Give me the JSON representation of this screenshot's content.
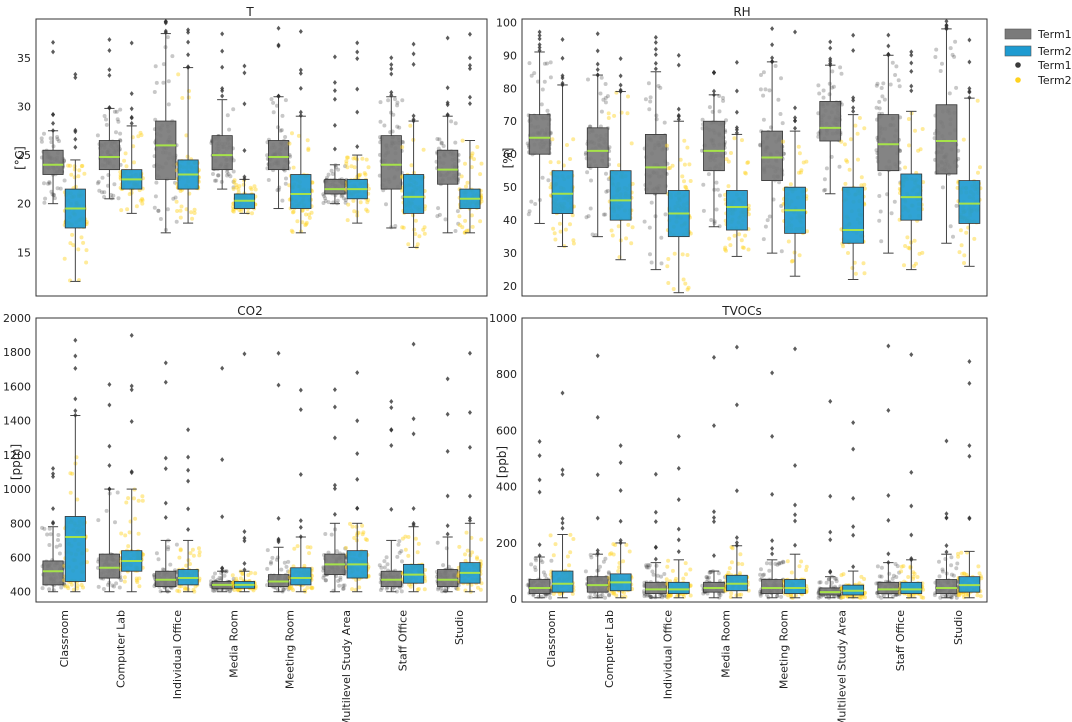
{
  "categories": [
    "Classroom",
    "Computer Lab",
    "Individual Office",
    "Media Room",
    "Meeting Room",
    "Multilevel Study Area",
    "Staff Office",
    "Studio"
  ],
  "legend": {
    "box_term1": "Term1",
    "box_term2": "Term2",
    "dot_term1": "Term1",
    "dot_term2": "Term2"
  },
  "colors": {
    "term1_box": "#7a7a7a",
    "term2_box": "#1e9bd1",
    "term1_dot": "#3a3a3a",
    "term2_dot": "#ffd21f",
    "median": "#a6e34a"
  },
  "chart_data": [
    {
      "type": "box",
      "title": "T",
      "ylabel": "[°C]",
      "ylim": [
        10.5,
        39
      ],
      "yticks": [
        15,
        20,
        25,
        30,
        35
      ],
      "series": [
        {
          "name": "Term1",
          "stats": [
            [
              20,
              23,
              24,
              25.5,
              27.5
            ],
            [
              20.5,
              23.5,
              24.8,
              26.5,
              29.8
            ],
            [
              17,
              22.5,
              26,
              28.5,
              37.5
            ],
            [
              21.5,
              23.5,
              25,
              27,
              30.7
            ],
            [
              19.5,
              23.5,
              24.8,
              26.5,
              31
            ],
            [
              20,
              21,
              21.5,
              22.5,
              24
            ],
            [
              17.5,
              21.5,
              24,
              27,
              31
            ],
            [
              17,
              22,
              23.5,
              25.5,
              29
            ]
          ]
        },
        {
          "name": "Term2",
          "stats": [
            [
              12,
              17.5,
              19.5,
              21.5,
              24.5
            ],
            [
              19,
              21.5,
              22.5,
              23.5,
              28
            ],
            [
              18,
              21.5,
              23,
              24.5,
              34
            ],
            [
              19,
              19.5,
              20.3,
              21,
              22.5
            ],
            [
              17,
              19.5,
              21,
              23,
              29
            ],
            [
              18,
              20.5,
              21.5,
              22.5,
              25
            ],
            [
              15.5,
              19,
              20.7,
              23,
              28.5
            ],
            [
              17,
              19.5,
              20.5,
              21.5,
              26.5
            ]
          ]
        }
      ]
    },
    {
      "type": "box",
      "title": "RH",
      "ylabel": "[%]",
      "ylim": [
        17,
        101
      ],
      "yticks": [
        20,
        30,
        40,
        50,
        60,
        70,
        80,
        90,
        100
      ],
      "series": [
        {
          "name": "Term1",
          "stats": [
            [
              39,
              60,
              65,
              72,
              91
            ],
            [
              35,
              56,
              61,
              68,
              84
            ],
            [
              25,
              48,
              56,
              66,
              85
            ],
            [
              38,
              55,
              61,
              70,
              78
            ],
            [
              30,
              52,
              59,
              67,
              88
            ],
            [
              48,
              64,
              68,
              76,
              87
            ],
            [
              30,
              55,
              63,
              72,
              90
            ],
            [
              33,
              54,
              64,
              75,
              98
            ]
          ]
        },
        {
          "name": "Term2",
          "stats": [
            [
              32,
              42,
              48,
              55,
              81
            ],
            [
              28,
              40,
              46,
              55,
              79
            ],
            [
              18,
              35,
              42,
              49,
              70
            ],
            [
              29,
              37,
              44,
              49,
              66
            ],
            [
              23,
              36,
              43,
              50,
              67
            ],
            [
              22,
              33,
              37,
              50,
              72
            ],
            [
              25,
              40,
              47,
              54,
              73
            ],
            [
              26,
              39,
              45,
              52,
              77
            ]
          ]
        }
      ]
    },
    {
      "type": "box",
      "title": "CO2",
      "ylabel": "[ppm]",
      "ylim": [
        340,
        2000
      ],
      "yticks": [
        400,
        600,
        800,
        1000,
        1200,
        1400,
        1600,
        1800,
        2000
      ],
      "series": [
        {
          "name": "Term1",
          "stats": [
            [
              400,
              440,
              520,
              580,
              780
            ],
            [
              400,
              480,
              540,
              620,
              1000
            ],
            [
              400,
              430,
              470,
              520,
              700
            ],
            [
              400,
              420,
              440,
              460,
              520
            ],
            [
              400,
              430,
              460,
              500,
              660
            ],
            [
              400,
              500,
              560,
              620,
              800
            ],
            [
              400,
              430,
              470,
              520,
              700
            ],
            [
              400,
              430,
              470,
              530,
              720
            ]
          ]
        },
        {
          "name": "Term2",
          "stats": [
            [
              400,
              460,
              720,
              840,
              1430
            ],
            [
              400,
              520,
              580,
              640,
              1000
            ],
            [
              400,
              440,
              480,
              530,
              700
            ],
            [
              400,
              420,
              440,
              460,
              520
            ],
            [
              400,
              440,
              480,
              540,
              720
            ],
            [
              400,
              480,
              560,
              640,
              800
            ],
            [
              400,
              450,
              500,
              560,
              780
            ],
            [
              400,
              450,
              510,
              570,
              800
            ]
          ]
        }
      ]
    },
    {
      "type": "box",
      "title": "TVOCs",
      "ylabel": "[ppb]",
      "ylim": [
        -10,
        1000
      ],
      "yticks": [
        0,
        200,
        400,
        600,
        800,
        1000
      ],
      "series": [
        {
          "name": "Term1",
          "stats": [
            [
              5,
              20,
              40,
              70,
              150
            ],
            [
              5,
              25,
              50,
              80,
              160
            ],
            [
              5,
              20,
              35,
              60,
              130
            ],
            [
              5,
              25,
              40,
              60,
              100
            ],
            [
              5,
              20,
              40,
              70,
              140
            ],
            [
              5,
              15,
              25,
              40,
              80
            ],
            [
              5,
              20,
              35,
              60,
              130
            ],
            [
              5,
              20,
              40,
              70,
              160
            ]
          ]
        },
        {
          "name": "Term2",
          "stats": [
            [
              5,
              25,
              55,
              100,
              230
            ],
            [
              5,
              30,
              60,
              90,
              200
            ],
            [
              5,
              20,
              35,
              60,
              140
            ],
            [
              5,
              30,
              55,
              85,
              190
            ],
            [
              5,
              20,
              40,
              70,
              160
            ],
            [
              5,
              15,
              30,
              50,
              100
            ],
            [
              5,
              20,
              35,
              60,
              140
            ],
            [
              5,
              25,
              50,
              80,
              170
            ]
          ]
        }
      ]
    }
  ]
}
